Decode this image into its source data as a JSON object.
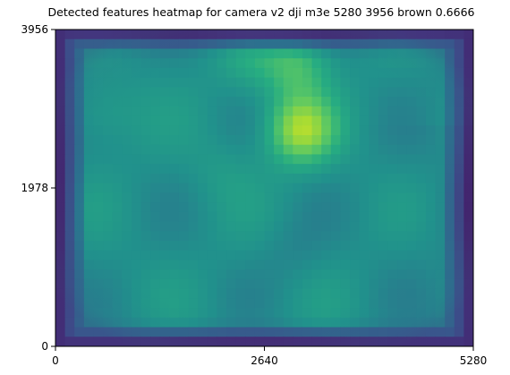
{
  "chart_data": {
    "type": "heatmap",
    "title": "Detected features heatmap for camera v2 dji m3e 5280 3956 brown 0.6666",
    "xlabel": "",
    "ylabel": "",
    "xlim": [
      0,
      5280
    ],
    "ylim": [
      0,
      3956
    ],
    "x_ticks": [
      "0",
      "2640",
      "5280"
    ],
    "y_ticks": [
      "0",
      "1978",
      "3956"
    ],
    "colormap": "viridis",
    "colors": {
      "low": "#440154",
      "mid": "#21918c",
      "high": "#fde725",
      "frame": "#000000"
    },
    "hotspots": [
      {
        "x": 3100,
        "y": 2700,
        "intensity": 0.95
      },
      {
        "x": 3050,
        "y": 3500,
        "intensity": 0.75
      },
      {
        "x": 600,
        "y": 2900,
        "intensity": 0.6
      },
      {
        "x": 2450,
        "y": 3550,
        "intensity": 0.6
      },
      {
        "x": 2100,
        "y": 2200,
        "intensity": 0.55
      },
      {
        "x": 550,
        "y": 900,
        "intensity": 0.5
      },
      {
        "x": 1900,
        "y": 900,
        "intensity": 0.5
      },
      {
        "x": 3000,
        "y": 1200,
        "intensity": 0.45
      }
    ],
    "grid": false
  }
}
